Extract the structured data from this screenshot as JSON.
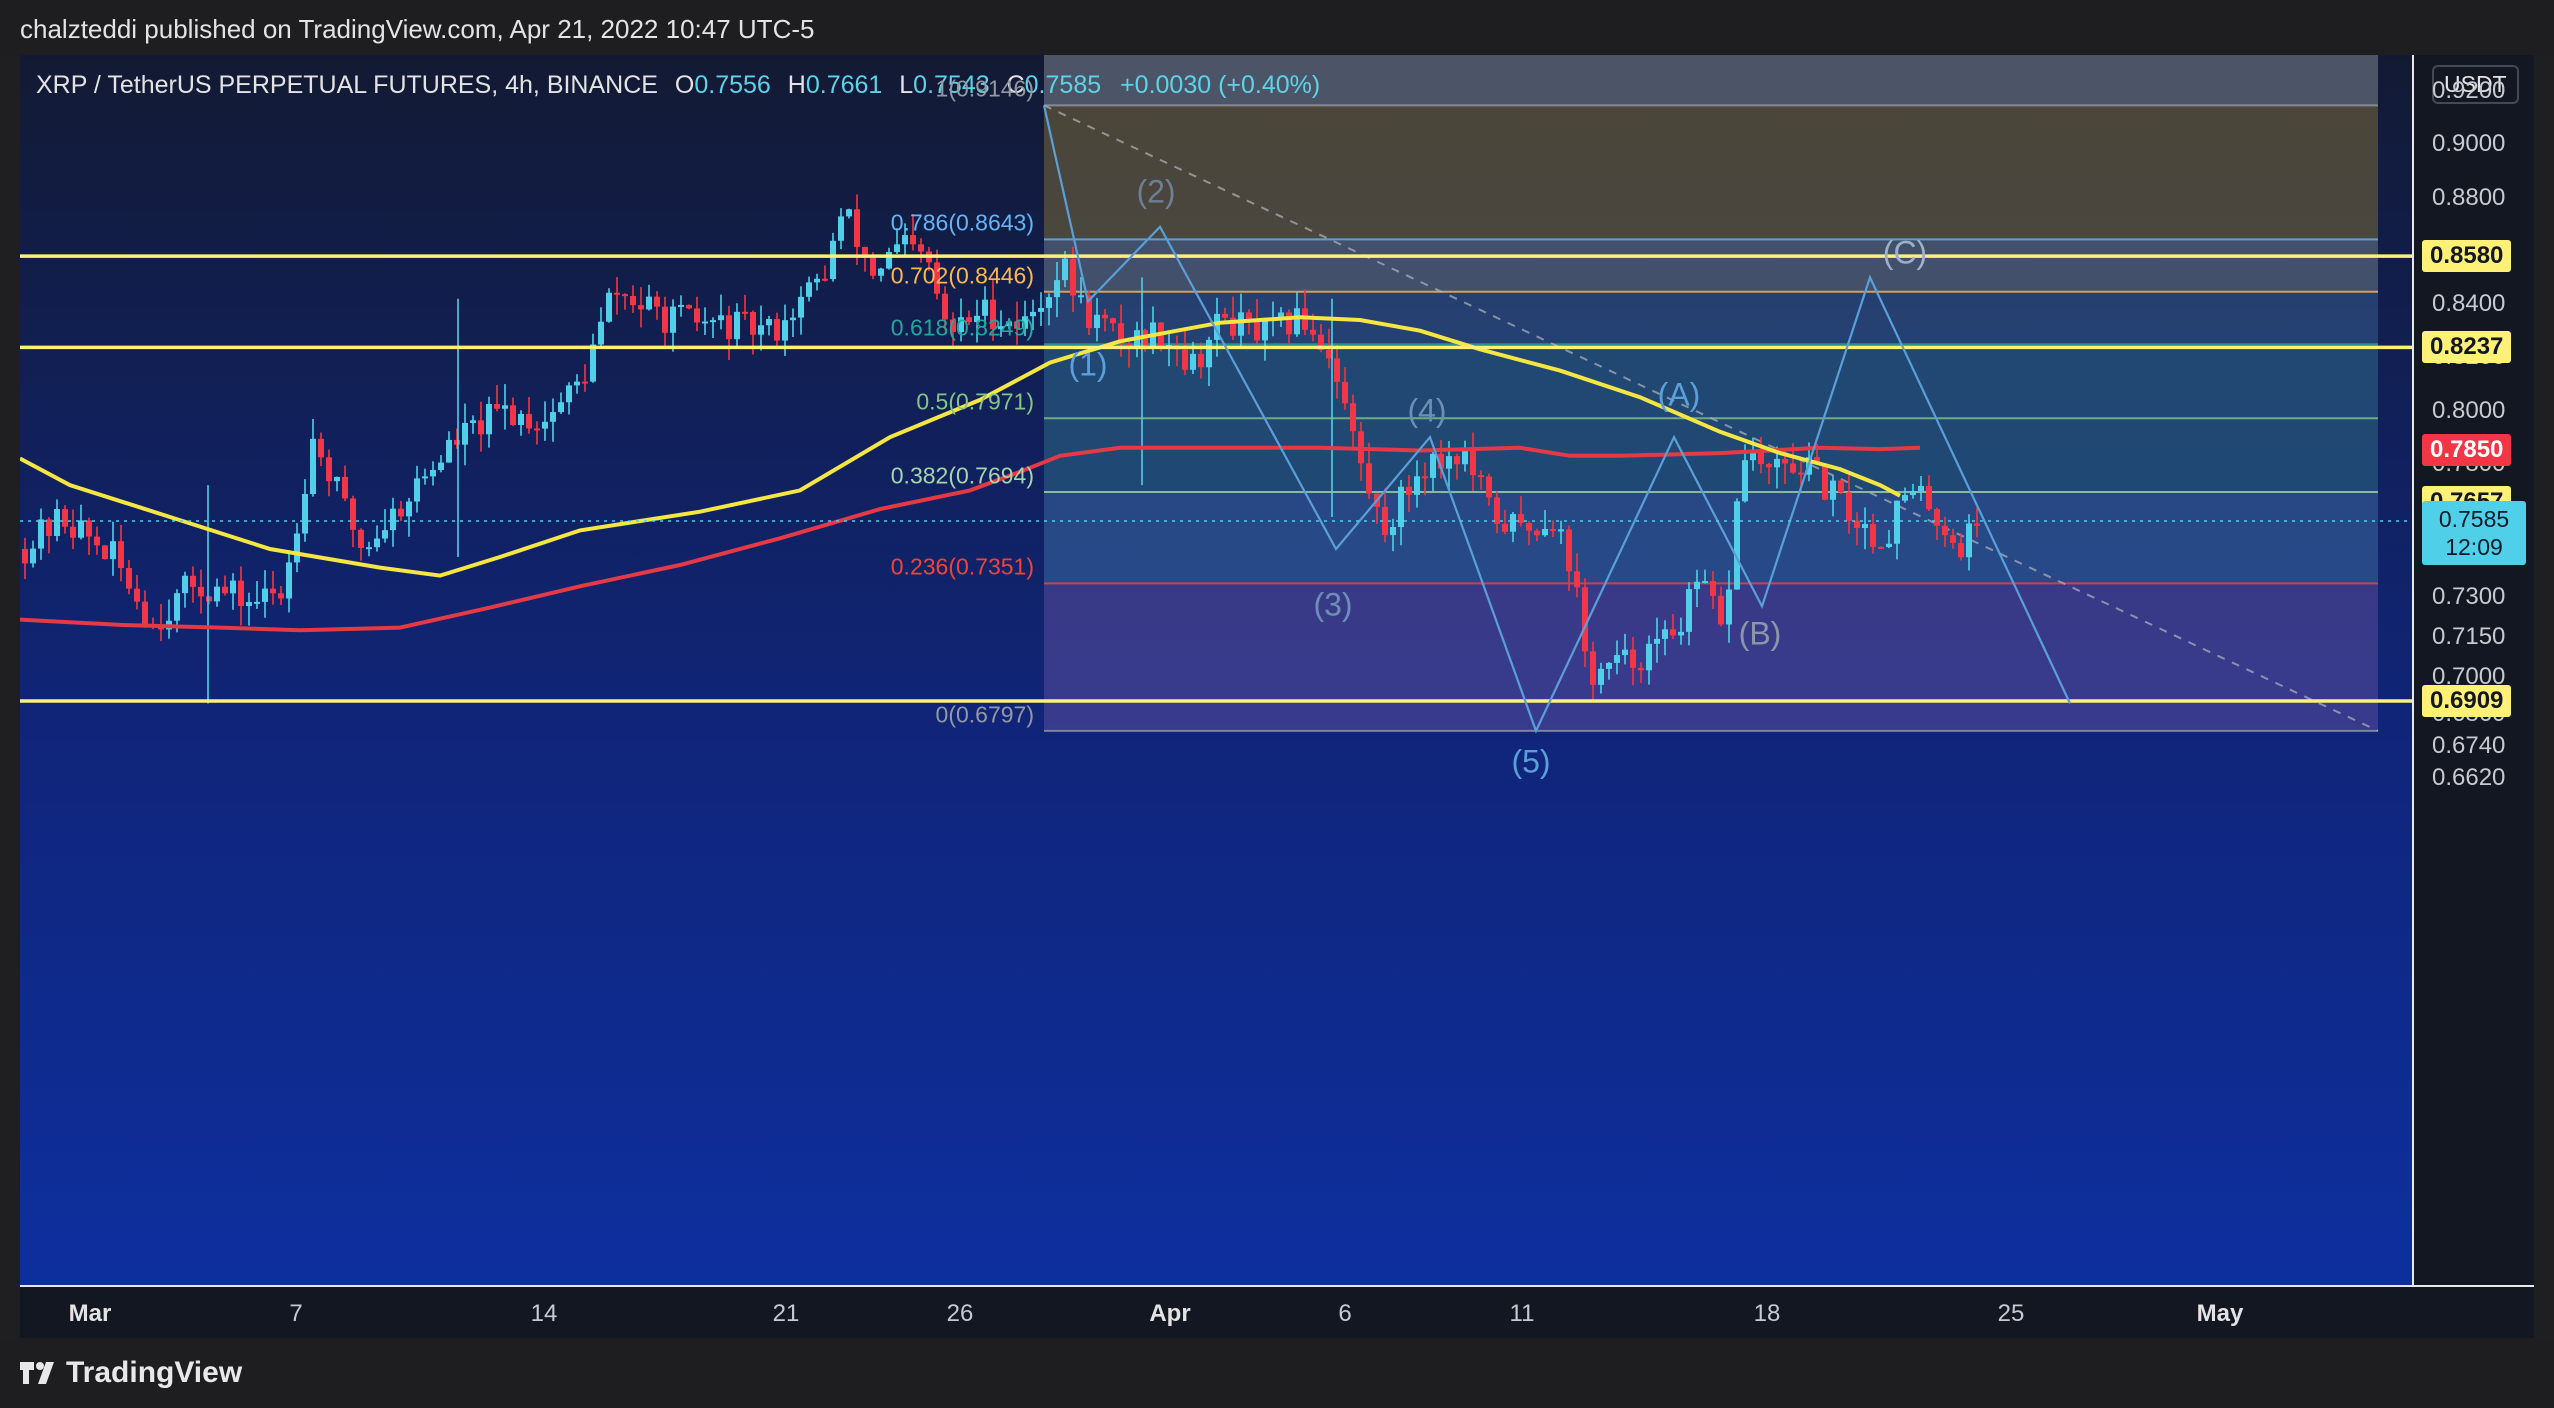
{
  "header": {
    "publisher": "chalzteddi published on TradingView.com, Apr 21, 2022 10:47 UTC-5"
  },
  "symbol": {
    "name": "XRP / TetherUS PERPETUAL FUTURES, 4h, BINANCE",
    "open_label": "O",
    "open": "0.7556",
    "high_label": "H",
    "high": "0.7661",
    "low_label": "L",
    "low": "0.7543",
    "close_label": "C",
    "close": "0.7585",
    "change": "+0.0030 (+0.40%)"
  },
  "currency": "USDT",
  "price_axis": {
    "ticks": [
      "0.9200",
      "0.9000",
      "0.8800",
      "0.8400",
      "0.8200",
      "0.8000",
      "0.7800",
      "0.7450",
      "0.7300",
      "0.7150",
      "0.7000",
      "0.6860",
      "0.6740",
      "0.6620"
    ],
    "levels": [
      {
        "price": "0.8580",
        "bg": "#fff176",
        "fg": "#131722"
      },
      {
        "price": "0.8237",
        "bg": "#fff176",
        "fg": "#131722"
      },
      {
        "price": "0.7850",
        "bg": "#f23645",
        "fg": "#ffffff"
      },
      {
        "price": "0.7657",
        "bg": "#fff176",
        "fg": "#131722"
      },
      {
        "price": "0.6909",
        "bg": "#fff176",
        "fg": "#131722"
      }
    ],
    "current_price": "0.7585",
    "countdown": "12:09"
  },
  "time_axis": [
    "Mar",
    "7",
    "14",
    "21",
    "26",
    "Apr",
    "6",
    "11",
    "18",
    "25",
    "May"
  ],
  "fib_levels": [
    {
      "label": "1(0.9146)",
      "price": 0.9146,
      "color": "#9598a1"
    },
    {
      "label": "0.786(0.8643)",
      "price": 0.8643,
      "color": "#64b5f6"
    },
    {
      "label": "0.702(0.8446)",
      "price": 0.8446,
      "color": "#ffb74d"
    },
    {
      "label": "0.618(0.8249)",
      "price": 0.8249,
      "color": "#26a69a"
    },
    {
      "label": "0.5(0.7971)",
      "price": 0.7971,
      "color": "#81c784"
    },
    {
      "label": "0.382(0.7694)",
      "price": 0.7694,
      "color": "#a5d6a7"
    },
    {
      "label": "0.236(0.7351)",
      "price": 0.7351,
      "color": "#f44336"
    },
    {
      "label": "0(0.6797)",
      "price": 0.6797,
      "color": "#9598a1"
    }
  ],
  "waves": [
    "(1)",
    "(2)",
    "(3)",
    "(4)",
    "(5)",
    "(A)",
    "(B)",
    "(C)"
  ],
  "footer": {
    "brand": "TradingView"
  },
  "colors": {
    "ma_fast": "#f5e642",
    "ma_slow": "#e53946",
    "bull": "#4fd0e8",
    "bear": "#f23645",
    "hline": "#fff176"
  }
}
